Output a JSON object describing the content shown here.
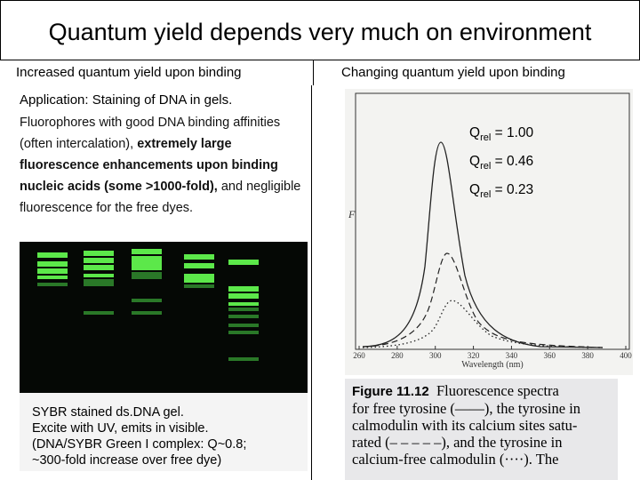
{
  "title": "Quantum yield depends very much on environment",
  "left": {
    "heading": "Increased quantum yield upon binding",
    "subheading": "Application: Staining of DNA in gels.",
    "body": {
      "intro": "Fluorophores with good DNA binding affinities (often intercalation), ",
      "emphasis": "extremely large fluorescence enhancements upon binding nucleic acids (some >1000-fold),",
      "outro": " and negligible fluorescence for the free dyes."
    },
    "gel_caption": [
      "SYBR stained ds.DNA gel.",
      "Excite with UV, emits in visible.",
      "(DNA/SYBR Green I complex: Q~0.8;",
      "~300-fold increase over free dye)"
    ]
  },
  "right": {
    "heading": "Changing quantum yield upon binding",
    "labels": [
      {
        "symbol": "Q",
        "subscript": "rel",
        "text": " = 1.00"
      },
      {
        "symbol": "Q",
        "subscript": "rel",
        "text": " = 0.46"
      },
      {
        "symbol": "Q",
        "subscript": "rel",
        "text": " = 0.23"
      }
    ],
    "figure": {
      "y_label": "F",
      "x_label": "Wavelength (nm)",
      "x_ticks": [
        "260",
        "280",
        "300",
        "320",
        "340",
        "360",
        "380",
        "400"
      ]
    },
    "caption": {
      "figure_number": "Figure 11.12",
      "lines": [
        "Fluorescence spectra",
        "for free tyrosine (——), the tyrosine in",
        "calmodulin with its calcium sites satu-",
        "rated (– – – – –), and the tyrosine in",
        "calcium-free calmodulin (····). The"
      ]
    }
  }
}
